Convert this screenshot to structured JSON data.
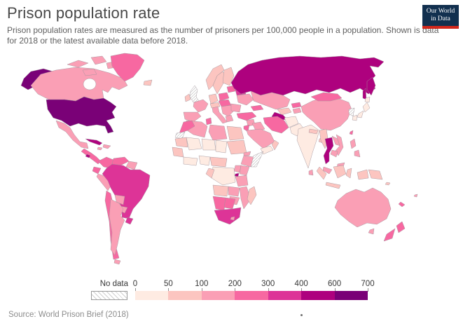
{
  "header": {
    "title": "Prison population rate",
    "subtitle_line1": "Prison population rates are measured as the number of prisoners per 100,000 people in a population. Shown is data",
    "subtitle_line2": "for 2018 or the latest available data before 2018.",
    "logo": {
      "line1": "Our World",
      "line2": "in Data",
      "bg_color": "#12304f",
      "accent_color": "#d2261b"
    }
  },
  "footer": {
    "source": "Source: World Prison Brief (2018)"
  },
  "legend": {
    "no_data_label": "No data"
  },
  "chart_data": {
    "type": "choropleth",
    "title": "Prison population rate",
    "unit": "prisoners per 100,000 people",
    "year_note": "2018 or latest available data before 2018",
    "legend_position": "bottom",
    "tick_labels": [
      "0",
      "50",
      "100",
      "200",
      "300",
      "400",
      "600",
      "700"
    ],
    "bins": [
      {
        "range": "0–50",
        "color": "#feebe2"
      },
      {
        "range": "50–100",
        "color": "#fcc5c0"
      },
      {
        "range": "100–200",
        "color": "#fa9fb5"
      },
      {
        "range": "200–300",
        "color": "#f768a1"
      },
      {
        "range": "300–400",
        "color": "#dd3497"
      },
      {
        "range": "400–600",
        "color": "#ae017e"
      },
      {
        "range": "600–700",
        "color": "#7a0177"
      }
    ],
    "no_data_style": "hatched",
    "countries": [
      {
        "name": "United States",
        "value_bin": "600–700"
      },
      {
        "name": "Russia",
        "value_bin": "400–600"
      },
      {
        "name": "Thailand",
        "value_bin": "400–600"
      },
      {
        "name": "Turkmenistan",
        "value_bin": "400–600"
      },
      {
        "name": "Cuba",
        "value_bin": "400–600"
      },
      {
        "name": "Rwanda",
        "value_bin": "400–600"
      },
      {
        "name": "El Salvador",
        "value_bin": "400–600"
      },
      {
        "name": "Brazil",
        "value_bin": "300–400"
      },
      {
        "name": "Uruguay",
        "value_bin": "300–400"
      },
      {
        "name": "South Africa",
        "value_bin": "300–400"
      },
      {
        "name": "Belarus",
        "value_bin": "300–400"
      },
      {
        "name": "Greenland",
        "value_bin": "200–300"
      },
      {
        "name": "Colombia",
        "value_bin": "200–300"
      },
      {
        "name": "Venezuela",
        "value_bin": "200–300"
      },
      {
        "name": "Chile",
        "value_bin": "200–300"
      },
      {
        "name": "Iran",
        "value_bin": "200–300"
      },
      {
        "name": "Turkey",
        "value_bin": "200–300"
      },
      {
        "name": "Mongolia",
        "value_bin": "200–300"
      },
      {
        "name": "Morocco",
        "value_bin": "200–300"
      },
      {
        "name": "Namibia",
        "value_bin": "200–300"
      },
      {
        "name": "Botswana",
        "value_bin": "200–300"
      },
      {
        "name": "New Zealand",
        "value_bin": "200–300"
      },
      {
        "name": "Poland",
        "value_bin": "200–300"
      },
      {
        "name": "Canada",
        "value_bin": "100–200"
      },
      {
        "name": "Mexico",
        "value_bin": "100–200"
      },
      {
        "name": "China",
        "value_bin": "100–200"
      },
      {
        "name": "Australia",
        "value_bin": "100–200"
      },
      {
        "name": "Kazakhstan",
        "value_bin": "100–200"
      },
      {
        "name": "Argentina",
        "value_bin": "100–200"
      },
      {
        "name": "Peru",
        "value_bin": "100–200"
      },
      {
        "name": "Ethiopia",
        "value_bin": "100–200"
      },
      {
        "name": "Ukraine",
        "value_bin": "100–200"
      },
      {
        "name": "France",
        "value_bin": "100–200"
      },
      {
        "name": "Spain",
        "value_bin": "100–200"
      },
      {
        "name": "Italy",
        "value_bin": "100–200"
      },
      {
        "name": "Saudi Arabia",
        "value_bin": "100–200"
      },
      {
        "name": "Philippines",
        "value_bin": "100–200"
      },
      {
        "name": "Vietnam",
        "value_bin": "100–200"
      },
      {
        "name": "Germany",
        "value_bin": "50–100"
      },
      {
        "name": "Norway",
        "value_bin": "50–100"
      },
      {
        "name": "Sweden",
        "value_bin": "50–100"
      },
      {
        "name": "Finland",
        "value_bin": "50–100"
      },
      {
        "name": "Ireland",
        "value_bin": "50–100"
      },
      {
        "name": "Egypt",
        "value_bin": "50–100"
      },
      {
        "name": "Indonesia",
        "value_bin": "50–100"
      },
      {
        "name": "Madagascar",
        "value_bin": "50–100"
      },
      {
        "name": "Papua New Guinea",
        "value_bin": "50–100"
      },
      {
        "name": "India",
        "value_bin": "0–50"
      },
      {
        "name": "Japan",
        "value_bin": "0–50"
      },
      {
        "name": "Pakistan",
        "value_bin": "0–50"
      },
      {
        "name": "Afghanistan",
        "value_bin": "0–50"
      },
      {
        "name": "Nigeria",
        "value_bin": "0–50"
      },
      {
        "name": "Democratic Republic of Congo",
        "value_bin": "0–50"
      },
      {
        "name": "United Kingdom",
        "value_bin": "No data"
      },
      {
        "name": "North Korea",
        "value_bin": "No data"
      },
      {
        "name": "Somalia",
        "value_bin": "No data"
      },
      {
        "name": "Western Sahara",
        "value_bin": "No data"
      }
    ]
  }
}
